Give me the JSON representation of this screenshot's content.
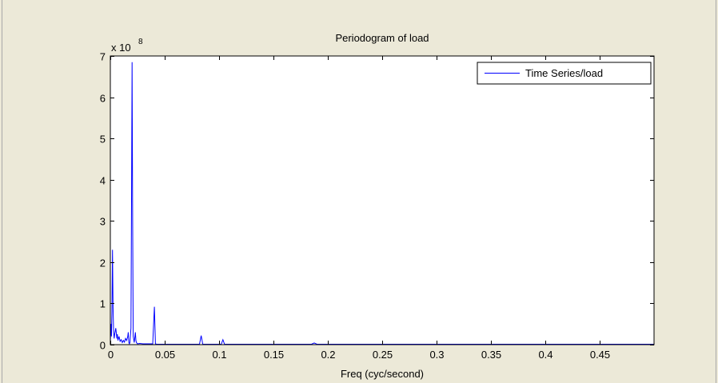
{
  "figure": {
    "background": "#ece9d8",
    "axes_background": "#ffffff"
  },
  "chart_data": {
    "type": "line",
    "title": "Periodogram of load",
    "xlabel": "Freq (cyc/second)",
    "ylabel": "",
    "y_exponent_label": "x 10",
    "y_exponent_power": "8",
    "y_scale_factor": 100000000,
    "xlim": [
      0,
      0.5
    ],
    "ylim": [
      0,
      7
    ],
    "grid": false,
    "legend": {
      "position": "top-right",
      "entries": [
        "Time Series/load"
      ]
    },
    "x_ticks": [
      0,
      0.05,
      0.1,
      0.15,
      0.2,
      0.25,
      0.3,
      0.35,
      0.4,
      0.45
    ],
    "x_tick_labels": [
      "0",
      "0.05",
      "0.1",
      "0.15",
      "0.2",
      "0.25",
      "0.3",
      "0.35",
      "0.4",
      "0.45"
    ],
    "y_ticks": [
      0,
      1,
      2,
      3,
      4,
      5,
      6,
      7
    ],
    "y_tick_labels": [
      "0",
      "1",
      "2",
      "3",
      "4",
      "5",
      "6",
      "7"
    ],
    "series": [
      {
        "name": "Time Series/load",
        "color": "#0000ff",
        "x": [
          0,
          0.0005,
          0.001,
          0.0015,
          0.002,
          0.0025,
          0.003,
          0.0035,
          0.004,
          0.005,
          0.006,
          0.0065,
          0.007,
          0.008,
          0.009,
          0.01,
          0.011,
          0.012,
          0.013,
          0.014,
          0.015,
          0.016,
          0.0165,
          0.017,
          0.0175,
          0.018,
          0.019,
          0.0195,
          0.02,
          0.0205,
          0.021,
          0.022,
          0.023,
          0.0235,
          0.024,
          0.025,
          0.027,
          0.03,
          0.035,
          0.039,
          0.0405,
          0.0415,
          0.0425,
          0.044,
          0.05,
          0.06,
          0.07,
          0.08,
          0.082,
          0.0835,
          0.085,
          0.09,
          0.1,
          0.102,
          0.1035,
          0.105,
          0.12,
          0.14,
          0.16,
          0.18,
          0.185,
          0.1875,
          0.19,
          0.2,
          0.25,
          0.3,
          0.35,
          0.4,
          0.45,
          0.5
        ],
        "values": [
          0.05,
          0.5,
          0.2,
          0.8,
          2.3,
          0.9,
          0.3,
          0.15,
          0.25,
          0.4,
          0.15,
          0.25,
          0.1,
          0.2,
          0.08,
          0.12,
          0.05,
          0.1,
          0.06,
          0.15,
          0.1,
          0.2,
          0.3,
          0.05,
          0.02,
          0.05,
          0.4,
          3.5,
          6.85,
          3.0,
          0.2,
          0.05,
          0.3,
          0.1,
          0.05,
          0.02,
          0.03,
          0.02,
          0.02,
          0.02,
          0.92,
          0.02,
          0.01,
          0.01,
          0.01,
          0.01,
          0.01,
          0.01,
          0.01,
          0.22,
          0.01,
          0.01,
          0.01,
          0.01,
          0.12,
          0.01,
          0.01,
          0.01,
          0.01,
          0.01,
          0.01,
          0.04,
          0.01,
          0.01,
          0.01,
          0.01,
          0.01,
          0.01,
          0.01,
          0.01
        ]
      }
    ]
  }
}
